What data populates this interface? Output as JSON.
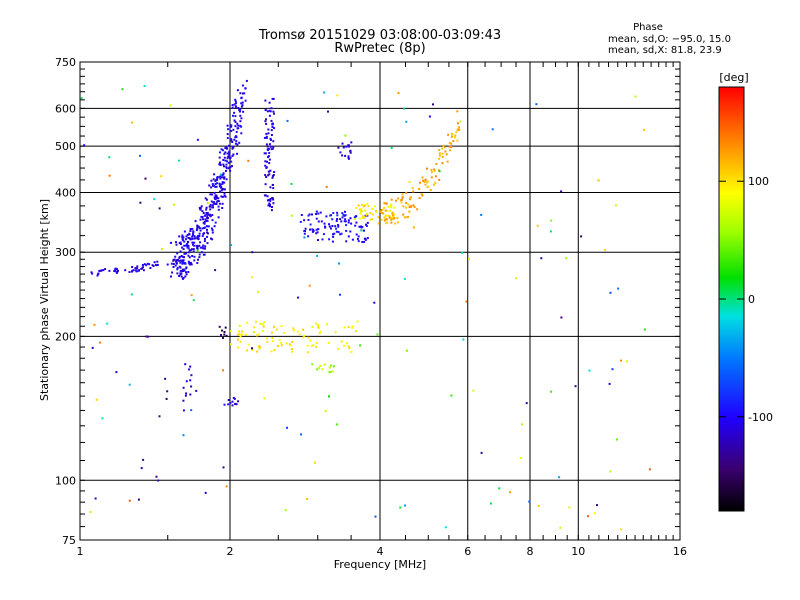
{
  "chart_data": {
    "type": "scatter",
    "title": "Tromsø 20151029 03:08:00-03:09:43",
    "subtitle": "RwPretec (8p)",
    "xlabel": "Frequency [MHz]",
    "ylabel": "Stationary phase Virtual Height [km]",
    "xscale": "log",
    "yscale": "log",
    "xlim": [
      1,
      16
    ],
    "ylim": [
      75,
      750
    ],
    "xticks": [
      1,
      2,
      4,
      6,
      8,
      10,
      16
    ],
    "yticks": [
      75,
      100,
      200,
      300,
      400,
      500,
      600,
      750
    ],
    "xgrid": [
      2,
      4,
      6,
      8,
      10
    ],
    "ygrid": [
      100,
      200,
      300,
      400,
      500,
      600
    ],
    "phase_info": {
      "heading": "Phase",
      "line1": "mean, sd,O: −95.0, 15.0",
      "line2": "mean, sd,X:  81.8, 23.9"
    },
    "colorbar": {
      "label": "[deg]",
      "range": [
        -180,
        180
      ],
      "ticks": [
        100,
        0,
        -100
      ]
    },
    "clusters": [
      {
        "x": [
          1.55,
          2.12
        ],
        "y": [
          290,
          640
        ],
        "curve": 1.0,
        "phase": -105,
        "n": 420,
        "spread": 0.1
      },
      {
        "x": [
          1.05,
          1.6
        ],
        "y": [
          272,
          292
        ],
        "curve": 0.9,
        "phase": -108,
        "n": 60,
        "spread": 0.015
      },
      {
        "x": [
          2.35,
          2.45
        ],
        "y": [
          360,
          640
        ],
        "curve": 0.0,
        "phase": -110,
        "n": 90,
        "spread": 0.01
      },
      {
        "x": [
          2.78,
          3.8
        ],
        "y": [
          315,
          365
        ],
        "curve": 0.0,
        "phase": -100,
        "n": 110,
        "spread": 0.04
      },
      {
        "x": [
          3.3,
          3.5
        ],
        "y": [
          470,
          510
        ],
        "curve": 0.0,
        "phase": -110,
        "n": 18,
        "spread": 0.02
      },
      {
        "x": [
          3.5,
          4.3
        ],
        "y": [
          350,
          380
        ],
        "curve": 0.0,
        "phase": 95,
        "n": 50,
        "spread": 0.03
      },
      {
        "x": [
          4.0,
          5.8
        ],
        "y": [
          360,
          560
        ],
        "curve": 1.0,
        "phase": 120,
        "n": 120,
        "spread": 0.06
      },
      {
        "x": [
          2.0,
          3.6
        ],
        "y": [
          185,
          215
        ],
        "curve": 0.0,
        "phase": 95,
        "n": 90,
        "spread": 0.04
      },
      {
        "x": [
          2.9,
          3.3
        ],
        "y": [
          168,
          175
        ],
        "curve": 0.0,
        "phase": 60,
        "n": 14,
        "spread": 0.01
      },
      {
        "x": [
          1.62,
          1.72
        ],
        "y": [
          140,
          175
        ],
        "curve": 0.0,
        "phase": -110,
        "n": 14,
        "spread": 0.03
      },
      {
        "x": [
          1.95,
          2.08
        ],
        "y": [
          143,
          150
        ],
        "curve": 0.0,
        "phase": -110,
        "n": 12,
        "spread": 0.01
      },
      {
        "x": [
          1.9,
          1.98
        ],
        "y": [
          198,
          212
        ],
        "curve": 0.0,
        "phase": -150,
        "n": 8,
        "spread": 0.01
      },
      {
        "x": [
          1.38,
          1.42
        ],
        "y": [
          85,
          600
        ],
        "curve": 0.0,
        "phase": -140,
        "n": 14,
        "spread": 0.3
      },
      {
        "x": [
          1.0,
          14.0
        ],
        "y": [
          78,
          700
        ],
        "curve": 0.0,
        "phase": 0,
        "n": 140,
        "spread": 0.5,
        "random": true
      }
    ]
  }
}
